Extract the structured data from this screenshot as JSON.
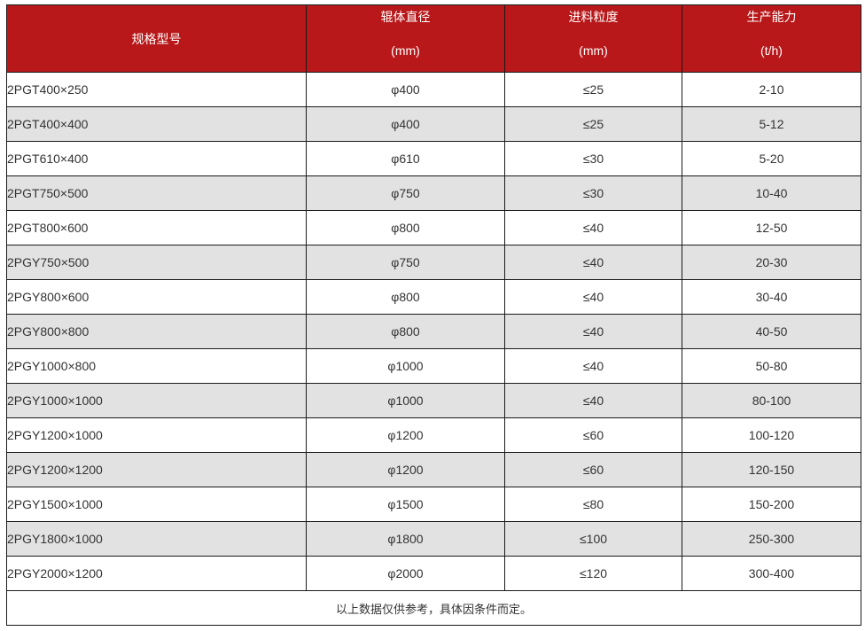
{
  "header": {
    "model": "规格型号",
    "diameter": "辊体直径",
    "diameter_unit": "(mm)",
    "feed": "进料粒度",
    "feed_unit": "(mm)",
    "capacity": "生产能力",
    "capacity_unit": "(t/h)"
  },
  "rows": [
    [
      "2PGT400×250",
      "φ400",
      "≤25",
      "2-10"
    ],
    [
      "2PGT400×400",
      "φ400",
      "≤25",
      "5-12"
    ],
    [
      "2PGT610×400",
      "φ610",
      "≤30",
      "5-20"
    ],
    [
      "2PGT750×500",
      "φ750",
      "≤30",
      "10-40"
    ],
    [
      "2PGT800×600",
      "φ800",
      "≤40",
      "12-50"
    ],
    [
      "2PGY750×500",
      "φ750",
      "≤40",
      "20-30"
    ],
    [
      "2PGY800×600",
      "φ800",
      "≤40",
      "30-40"
    ],
    [
      "2PGY800×800",
      "φ800",
      "≤40",
      "40-50"
    ],
    [
      "2PGY1000×800",
      "φ1000",
      "≤40",
      "50-80"
    ],
    [
      "2PGY1000×1000",
      "φ1000",
      "≤40",
      "80-100"
    ],
    [
      "2PGY1200×1000",
      "φ1200",
      "≤60",
      "100-120"
    ],
    [
      "2PGY1200×1200",
      "φ1200",
      "≤60",
      "120-150"
    ],
    [
      "2PGY1500×1000",
      "φ1500",
      "≤80",
      "150-200"
    ],
    [
      "2PGY1800×1000",
      "φ1800",
      "≤100",
      "250-300"
    ],
    [
      "2PGY2000×1200",
      "φ2000",
      "≤120",
      "300-400"
    ]
  ],
  "footer": "以上数据仅供参考，具体因条件而定。",
  "colors": {
    "header_bg": "#b9181a",
    "alt_row_bg": "#e2e2e2"
  }
}
